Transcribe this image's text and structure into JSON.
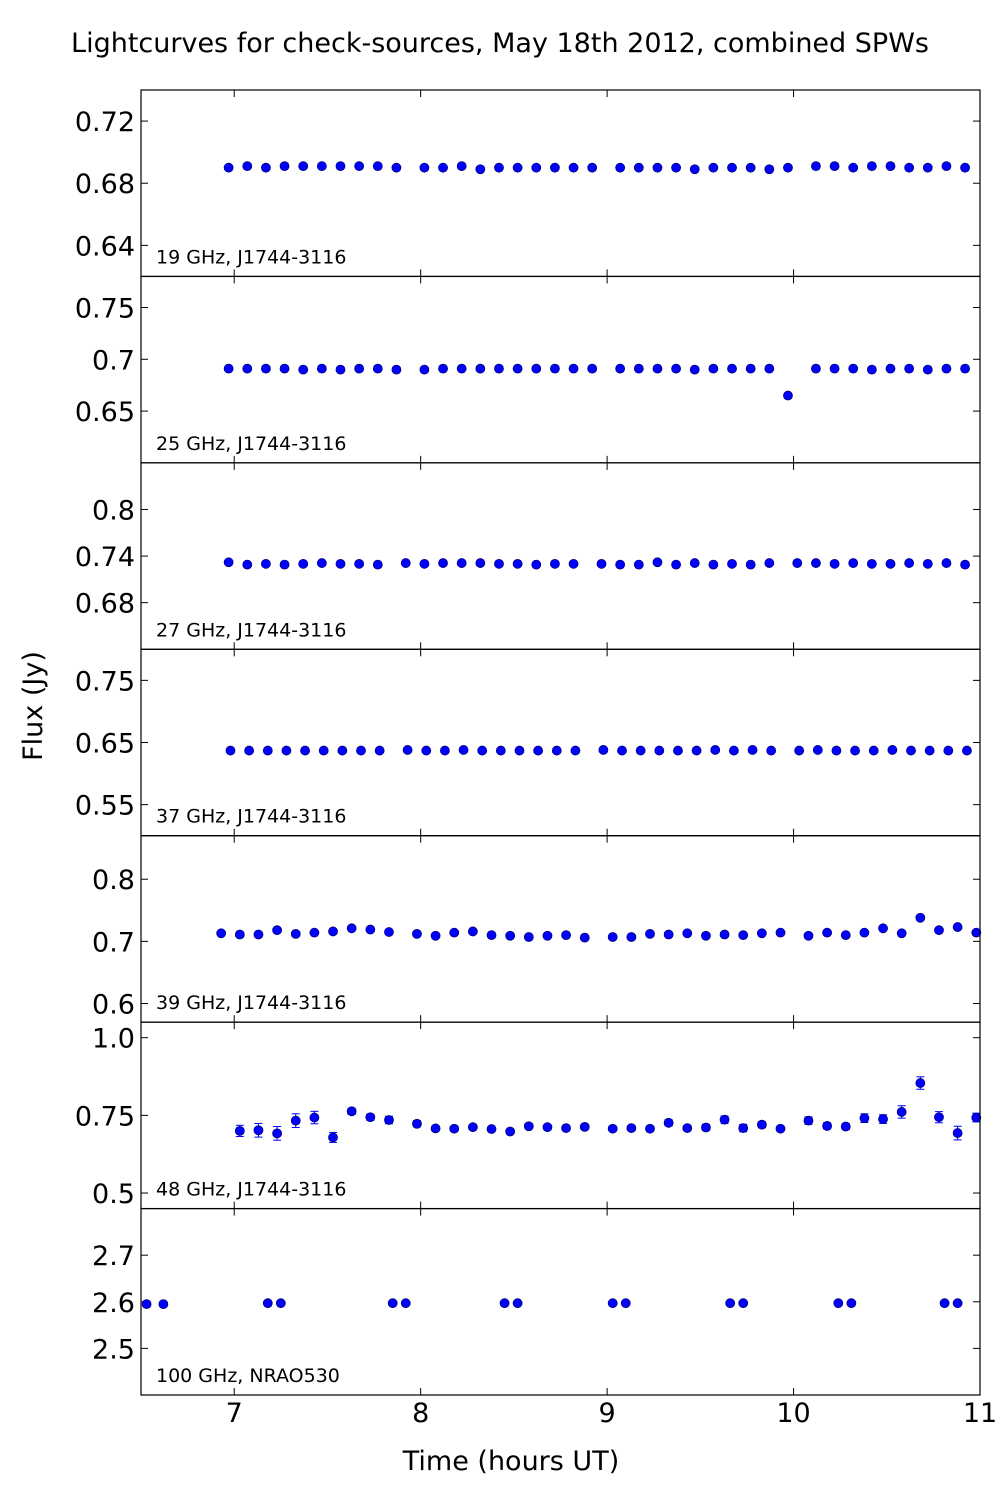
{
  "figure": {
    "title": "Lightcurves for check-sources, May 18th 2012, combined SPWs",
    "ylabel": "Flux (Jy)",
    "xlabel": "Time (hours UT)",
    "xlim": [
      6.5,
      11
    ],
    "xticks": [
      "7",
      "8",
      "9",
      "10",
      "11"
    ],
    "marker_color": "#0000ff"
  },
  "chart_data": [
    {
      "type": "scatter",
      "label": "19 GHz, J1744-3116",
      "ylim": [
        0.62,
        0.74
      ],
      "yticks": [
        0.64,
        0.68,
        0.72
      ],
      "ytick_labels": [
        "0.64",
        "0.68",
        "0.72"
      ],
      "x": [
        6.97,
        7.07,
        7.17,
        7.27,
        7.37,
        7.47,
        7.57,
        7.67,
        7.77,
        7.87,
        8.02,
        8.12,
        8.22,
        8.32,
        8.42,
        8.52,
        8.62,
        8.72,
        8.82,
        8.92,
        9.07,
        9.17,
        9.27,
        9.37,
        9.47,
        9.57,
        9.67,
        9.77,
        9.87,
        9.97,
        10.12,
        10.22,
        10.32,
        10.42,
        10.52,
        10.62,
        10.72,
        10.82,
        10.92
      ],
      "y": [
        0.69,
        0.691,
        0.69,
        0.691,
        0.691,
        0.691,
        0.691,
        0.691,
        0.691,
        0.69,
        0.69,
        0.69,
        0.691,
        0.689,
        0.69,
        0.69,
        0.69,
        0.69,
        0.69,
        0.69,
        0.69,
        0.69,
        0.69,
        0.69,
        0.689,
        0.69,
        0.69,
        0.69,
        0.689,
        0.69,
        0.691,
        0.691,
        0.69,
        0.691,
        0.691,
        0.69,
        0.69,
        0.691,
        0.69
      ]
    },
    {
      "type": "scatter",
      "label": "25 GHz, J1744-3116",
      "ylim": [
        0.6,
        0.78
      ],
      "yticks": [
        0.65,
        0.7,
        0.75
      ],
      "ytick_labels": [
        "0.65",
        "0.7",
        "0.75"
      ],
      "x": [
        6.97,
        7.07,
        7.17,
        7.27,
        7.37,
        7.47,
        7.57,
        7.67,
        7.77,
        7.87,
        8.02,
        8.12,
        8.22,
        8.32,
        8.42,
        8.52,
        8.62,
        8.72,
        8.82,
        8.92,
        9.07,
        9.17,
        9.27,
        9.37,
        9.47,
        9.57,
        9.67,
        9.77,
        9.87,
        9.97,
        10.12,
        10.22,
        10.32,
        10.42,
        10.52,
        10.62,
        10.72,
        10.82,
        10.92
      ],
      "y": [
        0.691,
        0.691,
        0.691,
        0.691,
        0.69,
        0.691,
        0.69,
        0.691,
        0.691,
        0.69,
        0.69,
        0.691,
        0.691,
        0.691,
        0.691,
        0.691,
        0.691,
        0.691,
        0.691,
        0.691,
        0.691,
        0.691,
        0.691,
        0.691,
        0.69,
        0.691,
        0.691,
        0.691,
        0.691,
        0.665,
        0.691,
        0.691,
        0.691,
        0.69,
        0.691,
        0.691,
        0.69,
        0.691,
        0.691
      ]
    },
    {
      "type": "scatter",
      "label": "27 GHz, J1744-3116",
      "ylim": [
        0.62,
        0.86
      ],
      "yticks": [
        0.68,
        0.74,
        0.8
      ],
      "ytick_labels": [
        "0.68",
        "0.74",
        "0.8"
      ],
      "x": [
        6.97,
        7.07,
        7.17,
        7.27,
        7.37,
        7.47,
        7.57,
        7.67,
        7.77,
        7.92,
        8.02,
        8.12,
        8.22,
        8.32,
        8.42,
        8.52,
        8.62,
        8.72,
        8.82,
        8.97,
        9.07,
        9.17,
        9.27,
        9.37,
        9.47,
        9.57,
        9.67,
        9.77,
        9.87,
        10.02,
        10.12,
        10.22,
        10.32,
        10.42,
        10.52,
        10.62,
        10.72,
        10.82,
        10.92
      ],
      "y": [
        0.732,
        0.729,
        0.73,
        0.729,
        0.73,
        0.731,
        0.73,
        0.73,
        0.729,
        0.731,
        0.73,
        0.731,
        0.731,
        0.731,
        0.73,
        0.73,
        0.729,
        0.73,
        0.73,
        0.73,
        0.729,
        0.729,
        0.732,
        0.729,
        0.731,
        0.729,
        0.73,
        0.729,
        0.731,
        0.731,
        0.731,
        0.73,
        0.731,
        0.73,
        0.73,
        0.731,
        0.73,
        0.731,
        0.729
      ]
    },
    {
      "type": "scatter",
      "label": "37 GHz, J1744-3116",
      "ylim": [
        0.5,
        0.8
      ],
      "yticks": [
        0.55,
        0.65,
        0.75
      ],
      "ytick_labels": [
        "0.55",
        "0.65",
        "0.75"
      ],
      "x": [
        6.98,
        7.08,
        7.18,
        7.28,
        7.38,
        7.48,
        7.58,
        7.68,
        7.78,
        7.93,
        8.03,
        8.13,
        8.23,
        8.33,
        8.43,
        8.53,
        8.63,
        8.73,
        8.83,
        8.98,
        9.08,
        9.18,
        9.28,
        9.38,
        9.48,
        9.58,
        9.68,
        9.78,
        9.88,
        10.03,
        10.13,
        10.23,
        10.33,
        10.43,
        10.53,
        10.63,
        10.73,
        10.83,
        10.93
      ],
      "y": [
        0.637,
        0.637,
        0.637,
        0.637,
        0.637,
        0.637,
        0.637,
        0.637,
        0.637,
        0.638,
        0.637,
        0.637,
        0.638,
        0.637,
        0.637,
        0.637,
        0.637,
        0.637,
        0.637,
        0.638,
        0.637,
        0.637,
        0.637,
        0.637,
        0.637,
        0.638,
        0.637,
        0.638,
        0.637,
        0.637,
        0.638,
        0.637,
        0.637,
        0.637,
        0.638,
        0.637,
        0.637,
        0.637,
        0.637
      ]
    },
    {
      "type": "scatter",
      "label": "39 GHz, J1744-3116",
      "ylim": [
        0.57,
        0.87
      ],
      "yticks": [
        0.6,
        0.7,
        0.8
      ],
      "ytick_labels": [
        "0.6",
        "0.7",
        "0.8"
      ],
      "x": [
        6.93,
        7.03,
        7.13,
        7.23,
        7.33,
        7.43,
        7.53,
        7.63,
        7.73,
        7.83,
        7.98,
        8.08,
        8.18,
        8.28,
        8.38,
        8.48,
        8.58,
        8.68,
        8.78,
        8.88,
        9.03,
        9.13,
        9.23,
        9.33,
        9.43,
        9.53,
        9.63,
        9.73,
        9.83,
        9.93,
        10.08,
        10.18,
        10.28,
        10.38,
        10.48,
        10.58,
        10.68,
        10.78,
        10.88,
        10.98
      ],
      "y": [
        0.713,
        0.711,
        0.711,
        0.718,
        0.712,
        0.714,
        0.716,
        0.721,
        0.719,
        0.715,
        0.712,
        0.709,
        0.714,
        0.716,
        0.71,
        0.709,
        0.707,
        0.709,
        0.71,
        0.706,
        0.707,
        0.707,
        0.712,
        0.711,
        0.713,
        0.709,
        0.711,
        0.71,
        0.713,
        0.714,
        0.709,
        0.714,
        0.71,
        0.714,
        0.721,
        0.713,
        0.738,
        0.718,
        0.723,
        0.714
      ]
    },
    {
      "type": "scatter",
      "label": "48 GHz, J1744-3116",
      "ylim": [
        0.45,
        1.05
      ],
      "yticks": [
        0.5,
        0.75,
        1.0
      ],
      "ytick_labels": [
        "0.5",
        "0.75",
        "1.0"
      ],
      "x": [
        7.03,
        7.13,
        7.23,
        7.33,
        7.43,
        7.53,
        7.63,
        7.73,
        7.83,
        7.98,
        8.08,
        8.18,
        8.28,
        8.38,
        8.48,
        8.58,
        8.68,
        8.78,
        8.88,
        9.03,
        9.13,
        9.23,
        9.33,
        9.43,
        9.53,
        9.63,
        9.73,
        9.83,
        9.93,
        10.08,
        10.18,
        10.28,
        10.38,
        10.48,
        10.58,
        10.68,
        10.78,
        10.88,
        10.98
      ],
      "y": [
        0.7,
        0.702,
        0.692,
        0.733,
        0.743,
        0.679,
        0.763,
        0.744,
        0.735,
        0.723,
        0.708,
        0.707,
        0.712,
        0.706,
        0.698,
        0.715,
        0.712,
        0.709,
        0.713,
        0.707,
        0.709,
        0.707,
        0.726,
        0.709,
        0.711,
        0.736,
        0.709,
        0.72,
        0.707,
        0.733,
        0.716,
        0.714,
        0.741,
        0.738,
        0.761,
        0.854,
        0.744,
        0.693,
        0.743
      ],
      "yerr": [
        0.018,
        0.022,
        0.022,
        0.022,
        0.02,
        0.016,
        0.01,
        0.01,
        0.012,
        0.01,
        0.008,
        0.008,
        0.008,
        0.008,
        0.008,
        0.008,
        0.008,
        0.008,
        0.008,
        0.008,
        0.008,
        0.008,
        0.01,
        0.008,
        0.01,
        0.012,
        0.012,
        0.01,
        0.008,
        0.012,
        0.01,
        0.01,
        0.014,
        0.014,
        0.02,
        0.02,
        0.018,
        0.022,
        0.014
      ]
    },
    {
      "type": "scatter",
      "label": "100 GHz, NRAO530",
      "ylim": [
        2.4,
        2.8
      ],
      "yticks": [
        2.5,
        2.6,
        2.7
      ],
      "ytick_labels": [
        "2.5",
        "2.6",
        "2.7"
      ],
      "x": [
        6.53,
        6.62,
        7.18,
        7.25,
        7.85,
        7.92,
        8.45,
        8.52,
        9.03,
        9.1,
        9.66,
        9.73,
        10.24,
        10.31,
        10.81,
        10.88
      ],
      "y": [
        2.595,
        2.595,
        2.597,
        2.597,
        2.597,
        2.597,
        2.597,
        2.597,
        2.597,
        2.597,
        2.597,
        2.597,
        2.597,
        2.597,
        2.597,
        2.597
      ]
    }
  ]
}
